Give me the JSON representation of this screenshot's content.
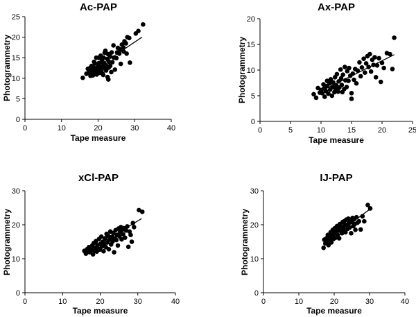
{
  "chart_data": [
    {
      "type": "scatter",
      "title": "Ac-PAP",
      "xlabel": "Tape measure",
      "ylabel": "Photogrammetry",
      "xlim": [
        0,
        40
      ],
      "ylim": [
        0,
        25
      ],
      "xticks": [
        0,
        10,
        20,
        30,
        40
      ],
      "yticks": [
        0,
        5,
        10,
        15,
        20,
        25
      ],
      "fit_line": [
        [
          17,
          11.0
        ],
        [
          32,
          20.0
        ]
      ],
      "points": [
        [
          15.8,
          10.1
        ],
        [
          16.8,
          11.1
        ],
        [
          17.2,
          12.3
        ],
        [
          17.5,
          11.5
        ],
        [
          17.8,
          12.5
        ],
        [
          17.9,
          10.6
        ],
        [
          18.2,
          13.0
        ],
        [
          18.3,
          12.0
        ],
        [
          18.5,
          11.0
        ],
        [
          18.6,
          10.7
        ],
        [
          18.8,
          12.6
        ],
        [
          18.9,
          14.0
        ],
        [
          19.0,
          11.7
        ],
        [
          19.1,
          13.6
        ],
        [
          19.3,
          12.2
        ],
        [
          19.5,
          15.0
        ],
        [
          19.6,
          10.9
        ],
        [
          19.7,
          11.4
        ],
        [
          19.9,
          12.8
        ],
        [
          20.0,
          12.0
        ],
        [
          20.1,
          15.0
        ],
        [
          20.2,
          13.7
        ],
        [
          20.4,
          11.3
        ],
        [
          20.5,
          12.3
        ],
        [
          20.7,
          15.5
        ],
        [
          20.8,
          11.7
        ],
        [
          20.9,
          12.9
        ],
        [
          21.0,
          14.5
        ],
        [
          21.2,
          11.2
        ],
        [
          21.3,
          13.9
        ],
        [
          21.4,
          10.8
        ],
        [
          21.5,
          15.0
        ],
        [
          21.7,
          12.4
        ],
        [
          21.8,
          16.2
        ],
        [
          21.9,
          13.4
        ],
        [
          22.0,
          16.7
        ],
        [
          22.2,
          11.9
        ],
        [
          22.3,
          13.0
        ],
        [
          22.5,
          14.7
        ],
        [
          22.6,
          10.3
        ],
        [
          22.7,
          15.9
        ],
        [
          22.8,
          9.7
        ],
        [
          22.9,
          12.6
        ],
        [
          23.0,
          14.0
        ],
        [
          23.2,
          15.5
        ],
        [
          23.3,
          13.0
        ],
        [
          23.6,
          11.5
        ],
        [
          23.7,
          16.3
        ],
        [
          23.9,
          13.9
        ],
        [
          24.2,
          18.0
        ],
        [
          24.3,
          15.0
        ],
        [
          24.6,
          12.1
        ],
        [
          25.0,
          14.9
        ],
        [
          25.2,
          16.3
        ],
        [
          25.4,
          17.4
        ],
        [
          25.8,
          16.0
        ],
        [
          26.0,
          17.0
        ],
        [
          26.2,
          13.5
        ],
        [
          26.5,
          18.2
        ],
        [
          26.9,
          17.5
        ],
        [
          27.0,
          16.5
        ],
        [
          27.2,
          19.0
        ],
        [
          27.6,
          18.5
        ],
        [
          27.8,
          16.0
        ],
        [
          28.0,
          20.0
        ],
        [
          28.5,
          19.8
        ],
        [
          28.7,
          13.8
        ],
        [
          30.3,
          20.9
        ],
        [
          31.0,
          21.5
        ],
        [
          32.3,
          23.1
        ]
      ]
    },
    {
      "type": "scatter",
      "title": "Ax-PAP",
      "xlabel": "Tape measure",
      "ylabel": "Photogrammetry",
      "xlim": [
        0,
        25
      ],
      "ylim": [
        0,
        20
      ],
      "xticks": [
        0,
        5,
        10,
        15,
        20,
        25
      ],
      "yticks": [
        0,
        5,
        10,
        15,
        20
      ],
      "fit_line": [
        [
          9.5,
          5.6
        ],
        [
          22,
          13.0
        ]
      ],
      "points": [
        [
          8.8,
          5.3
        ],
        [
          9.2,
          4.6
        ],
        [
          9.5,
          6.5
        ],
        [
          9.8,
          5.6
        ],
        [
          10.0,
          6.1
        ],
        [
          10.2,
          5.5
        ],
        [
          10.4,
          7.2
        ],
        [
          10.5,
          6.4
        ],
        [
          10.6,
          4.8
        ],
        [
          10.8,
          5.9
        ],
        [
          11.0,
          6.9
        ],
        [
          11.0,
          7.9
        ],
        [
          11.2,
          5.4
        ],
        [
          11.4,
          7.4
        ],
        [
          11.5,
          6.2
        ],
        [
          11.6,
          8.2
        ],
        [
          11.8,
          5.0
        ],
        [
          11.9,
          6.7
        ],
        [
          12.0,
          7.6
        ],
        [
          12.2,
          5.7
        ],
        [
          12.3,
          8.6
        ],
        [
          12.4,
          6.4
        ],
        [
          12.5,
          7.0
        ],
        [
          12.6,
          9.2
        ],
        [
          12.8,
          5.8
        ],
        [
          12.9,
          7.8
        ],
        [
          13.0,
          6.6
        ],
        [
          13.2,
          10.1
        ],
        [
          13.3,
          8.4
        ],
        [
          13.4,
          7.1
        ],
        [
          13.5,
          5.7
        ],
        [
          13.6,
          9.1
        ],
        [
          13.8,
          6.3
        ],
        [
          13.9,
          10.6
        ],
        [
          14.0,
          8.0
        ],
        [
          14.2,
          6.7
        ],
        [
          14.3,
          9.8
        ],
        [
          14.5,
          7.9
        ],
        [
          14.6,
          10.4
        ],
        [
          14.8,
          8.9
        ],
        [
          15.0,
          5.5
        ],
        [
          15.0,
          4.4
        ],
        [
          15.2,
          9.3
        ],
        [
          15.4,
          8.1
        ],
        [
          15.6,
          10.2
        ],
        [
          15.8,
          7.4
        ],
        [
          16.0,
          9.9
        ],
        [
          16.3,
          11.5
        ],
        [
          16.5,
          8.8
        ],
        [
          16.7,
          10.5
        ],
        [
          17.0,
          12.2
        ],
        [
          17.2,
          9.5
        ],
        [
          17.4,
          11.3
        ],
        [
          17.6,
          12.7
        ],
        [
          17.8,
          10.6
        ],
        [
          18.0,
          13.1
        ],
        [
          18.2,
          9.7
        ],
        [
          18.4,
          12.0
        ],
        [
          18.6,
          11.0
        ],
        [
          18.8,
          12.5
        ],
        [
          19.0,
          8.6
        ],
        [
          19.2,
          10.9
        ],
        [
          19.5,
          12.3
        ],
        [
          19.8,
          7.7
        ],
        [
          20.0,
          11.4
        ],
        [
          20.3,
          10.4
        ],
        [
          20.8,
          13.3
        ],
        [
          21.3,
          13.1
        ],
        [
          21.7,
          10.2
        ],
        [
          22.0,
          16.3
        ]
      ]
    },
    {
      "type": "scatter",
      "title": "xCl-PAP",
      "xlabel": "Tape measure",
      "ylabel": "Photogrammetry",
      "xlim": [
        0,
        40
      ],
      "ylim": [
        0,
        30
      ],
      "xticks": [
        0,
        10,
        20,
        30,
        40
      ],
      "yticks": [
        0,
        10,
        20,
        30
      ],
      "fit_line": [
        [
          16,
          11.8
        ],
        [
          31,
          21.8
        ]
      ],
      "points": [
        [
          15.8,
          12.3
        ],
        [
          16.2,
          11.5
        ],
        [
          16.5,
          12.8
        ],
        [
          16.8,
          12.0
        ],
        [
          17.0,
          13.4
        ],
        [
          17.3,
          11.9
        ],
        [
          17.6,
          12.6
        ],
        [
          17.9,
          13.9
        ],
        [
          18.1,
          11.3
        ],
        [
          18.3,
          14.6
        ],
        [
          18.5,
          12.4
        ],
        [
          18.7,
          13.2
        ],
        [
          18.9,
          15.2
        ],
        [
          19.1,
          12.1
        ],
        [
          19.3,
          14.0
        ],
        [
          19.5,
          13.0
        ],
        [
          19.7,
          15.8
        ],
        [
          19.9,
          12.7
        ],
        [
          20.1,
          14.4
        ],
        [
          20.3,
          16.5
        ],
        [
          20.5,
          13.6
        ],
        [
          20.7,
          15.0
        ],
        [
          20.9,
          12.2
        ],
        [
          21.1,
          14.0
        ],
        [
          21.3,
          16.0
        ],
        [
          21.5,
          13.4
        ],
        [
          21.7,
          17.3
        ],
        [
          21.9,
          14.8
        ],
        [
          22.1,
          16.8
        ],
        [
          22.3,
          12.8
        ],
        [
          22.5,
          15.6
        ],
        [
          22.7,
          18.0
        ],
        [
          22.9,
          14.2
        ],
        [
          23.1,
          16.4
        ],
        [
          23.3,
          15.1
        ],
        [
          23.5,
          17.6
        ],
        [
          23.7,
          11.9
        ],
        [
          23.9,
          16.0
        ],
        [
          24.1,
          18.4
        ],
        [
          24.3,
          15.5
        ],
        [
          24.5,
          17.0
        ],
        [
          24.7,
          13.9
        ],
        [
          24.9,
          18.9
        ],
        [
          25.1,
          16.6
        ],
        [
          25.3,
          17.9
        ],
        [
          25.5,
          19.3
        ],
        [
          25.7,
          15.7
        ],
        [
          25.9,
          18.6
        ],
        [
          26.1,
          17.2
        ],
        [
          26.3,
          19.0
        ],
        [
          26.6,
          16.2
        ],
        [
          26.9,
          18.3
        ],
        [
          27.2,
          19.5
        ],
        [
          27.5,
          13.5
        ],
        [
          27.8,
          18.0
        ],
        [
          28.1,
          17.0
        ],
        [
          28.4,
          15.0
        ],
        [
          28.7,
          20.5
        ],
        [
          29.0,
          19.3
        ],
        [
          30.3,
          24.3
        ],
        [
          31.2,
          23.8
        ]
      ]
    },
    {
      "type": "scatter",
      "title": "IJ-PAP",
      "xlabel": "Tape measure",
      "ylabel": "Photogrammetry",
      "xlim": [
        0,
        40
      ],
      "ylim": [
        0,
        30
      ],
      "xticks": [
        0,
        10,
        20,
        30,
        40
      ],
      "yticks": [
        0,
        10,
        20,
        30
      ],
      "fit_line": [
        [
          17,
          14.5
        ],
        [
          30,
          24.5
        ]
      ],
      "points": [
        [
          17.0,
          13.2
        ],
        [
          17.2,
          15.6
        ],
        [
          17.5,
          14.5
        ],
        [
          17.8,
          16.0
        ],
        [
          18.0,
          15.0
        ],
        [
          18.2,
          17.0
        ],
        [
          18.4,
          14.0
        ],
        [
          18.6,
          16.5
        ],
        [
          18.8,
          15.5
        ],
        [
          19.0,
          17.8
        ],
        [
          19.2,
          14.8
        ],
        [
          19.4,
          16.8
        ],
        [
          19.6,
          18.5
        ],
        [
          19.8,
          15.8
        ],
        [
          20.0,
          17.5
        ],
        [
          20.2,
          19.0
        ],
        [
          20.4,
          16.2
        ],
        [
          20.6,
          18.0
        ],
        [
          20.8,
          19.6
        ],
        [
          21.0,
          17.0
        ],
        [
          21.2,
          18.8
        ],
        [
          21.4,
          16.0
        ],
        [
          21.6,
          20.2
        ],
        [
          21.8,
          18.2
        ],
        [
          22.0,
          19.5
        ],
        [
          22.2,
          17.5
        ],
        [
          22.4,
          20.8
        ],
        [
          22.6,
          18.6
        ],
        [
          22.8,
          21.0
        ],
        [
          23.0,
          19.8
        ],
        [
          23.2,
          17.8
        ],
        [
          23.4,
          21.5
        ],
        [
          23.6,
          20.0
        ],
        [
          23.8,
          18.8
        ],
        [
          24.0,
          21.8
        ],
        [
          24.2,
          20.5
        ],
        [
          24.4,
          19.2
        ],
        [
          24.6,
          21.2
        ],
        [
          24.8,
          17.5
        ],
        [
          25.0,
          20.8
        ],
        [
          25.2,
          22.0
        ],
        [
          25.4,
          19.6
        ],
        [
          25.6,
          21.6
        ],
        [
          25.8,
          20.2
        ],
        [
          26.0,
          18.5
        ],
        [
          26.3,
          22.2
        ],
        [
          26.6,
          20.6
        ],
        [
          27.0,
          21.0
        ],
        [
          27.5,
          18.6
        ],
        [
          28.0,
          22.5
        ],
        [
          28.5,
          21.0
        ],
        [
          29.5,
          25.8
        ],
        [
          30.2,
          24.8
        ]
      ]
    }
  ]
}
